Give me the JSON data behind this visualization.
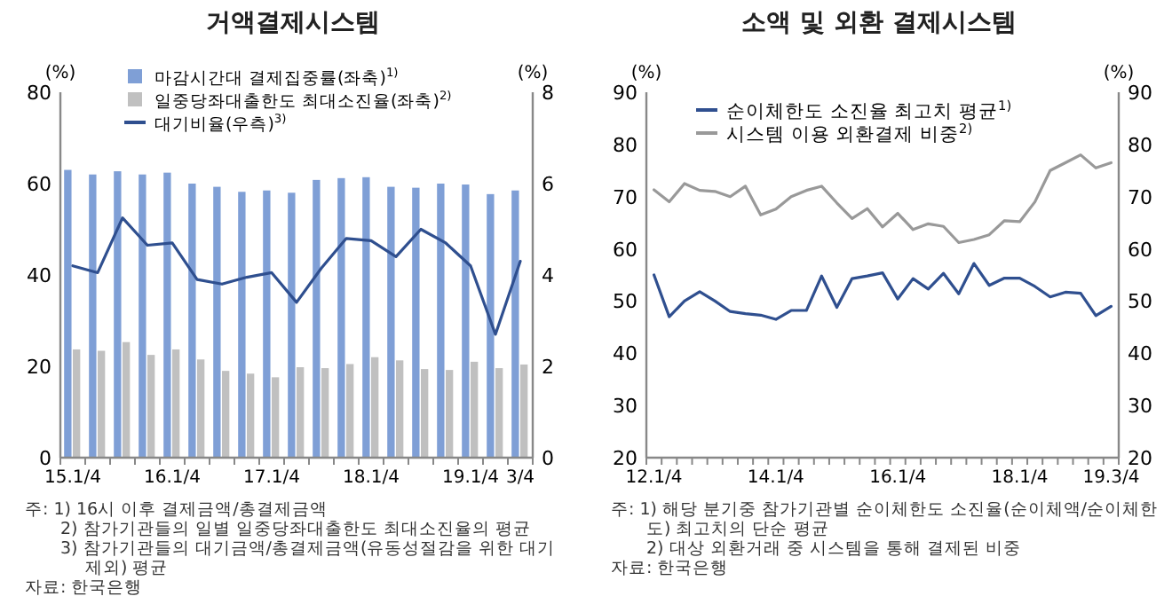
{
  "chart_data": [
    {
      "type": "bar",
      "title": "거액결제시스템",
      "ylabel": "(%)",
      "y2label": "(%)",
      "categories": [
        "15.1/4",
        null,
        null,
        null,
        "16.1/4",
        null,
        null,
        null,
        "17.1/4",
        null,
        null,
        null,
        "18.1/4",
        null,
        null,
        null,
        "19.1/4",
        null,
        "3/4"
      ],
      "ylim": [
        0,
        80
      ],
      "yticks": [
        0,
        20,
        40,
        60,
        80
      ],
      "y2lim": [
        0,
        8
      ],
      "y2ticks": [
        0,
        2,
        4,
        6,
        8
      ],
      "grid": false,
      "legend": "top",
      "marker": "none",
      "line_style": "solid",
      "series": [
        {
          "name": "마감시간대 결제집중률(좌축)$^{1)}$",
          "type": "bar",
          "color": "#7f9fd6",
          "values": [
            63,
            62,
            62.7,
            62,
            62.4,
            60,
            59.3,
            58.2,
            58.5,
            58,
            60.8,
            61.2,
            61.4,
            59.3,
            59.1,
            60,
            59.8,
            57.7,
            58.5
          ]
        },
        {
          "name": "일중당좌대출한도 최대소진율(좌축)$^{2)}$",
          "type": "bar",
          "color": "#c0c0c0",
          "values": [
            23.7,
            23.4,
            25.3,
            22.5,
            23.7,
            21.5,
            19,
            18.4,
            17.6,
            19.8,
            19.6,
            20.5,
            22,
            21.3,
            19.4,
            19.2,
            21,
            19.6,
            20.4
          ]
        },
        {
          "name": "대기비율(우측)$^{3)}$",
          "type": "line",
          "axis": "y2",
          "color": "#2f4f8f",
          "values": [
            4.2,
            4.05,
            5.25,
            4.65,
            4.7,
            3.9,
            3.8,
            3.95,
            4.05,
            3.4,
            4.15,
            4.8,
            4.75,
            4.4,
            5.0,
            4.7,
            4.2,
            2.7,
            4.3
          ]
        }
      ],
      "annotations": [
        "주: 1) 16시 이후 결제금액/총결제금액",
        "2) 참가기관들의 일별 일중당좌대출한도 최대소진율의 평균",
        "3) 참가기관들의 대기금액/총결제금액(유동성절감을 위한 대기 제외) 평균",
        "자료: 한국은행"
      ]
    },
    {
      "type": "line",
      "title": "소액 및 외환 결제시스템",
      "ylabel": "(%)",
      "y2label": "(%)",
      "categories": [
        "12.1/4",
        null,
        null,
        null,
        null,
        null,
        null,
        null,
        "14.1/4",
        null,
        null,
        null,
        null,
        null,
        null,
        null,
        "16.1/4",
        null,
        null,
        null,
        null,
        null,
        null,
        null,
        "18.1/4",
        null,
        null,
        null,
        null,
        null,
        "19.3/4"
      ],
      "ylim": [
        20,
        90
      ],
      "yticks": [
        20,
        30,
        40,
        50,
        60,
        70,
        80,
        90
      ],
      "y2lim": [
        20,
        90
      ],
      "y2ticks": [
        20,
        30,
        40,
        50,
        60,
        70,
        80,
        90
      ],
      "grid": false,
      "legend": "top",
      "marker": "none",
      "line_style": "solid",
      "series": [
        {
          "name": "순이체한도 소진율 최고치 평균$^{1)}$",
          "color": "#2f4f8f",
          "values": [
            55,
            47,
            50,
            51.8,
            50,
            48,
            47.6,
            47.3,
            46.5,
            48.2,
            48.2,
            54.8,
            48.8,
            54.3,
            54.8,
            55.4,
            50.4,
            54.3,
            52.3,
            55.3,
            51.4,
            57.2,
            53,
            54.4,
            54.4,
            52.8,
            50.8,
            51.7,
            51.5,
            47.2,
            49
          ]
        },
        {
          "name": "시스템 이용 외환결제 비중$^{2)}$",
          "color": "#999999",
          "values": [
            71.3,
            69,
            72.5,
            71.2,
            71,
            70,
            72,
            66.5,
            67.6,
            70,
            71.2,
            72,
            68.8,
            65.8,
            67.7,
            64.2,
            66.8,
            63.7,
            64.8,
            64.3,
            61.2,
            61.8,
            62.7,
            65.4,
            65.2,
            69,
            75,
            76.5,
            78,
            75.5,
            76.5
          ]
        }
      ],
      "annotations": [
        "주: 1) 해당 분기중 참가기관별 순이체한도 소진율(순이체액/순이체한도) 최고치의 단순 평균",
        "2) 대상 외환거래 중 시스템을 통해 결제된 비중",
        "자료: 한국은행"
      ]
    }
  ]
}
